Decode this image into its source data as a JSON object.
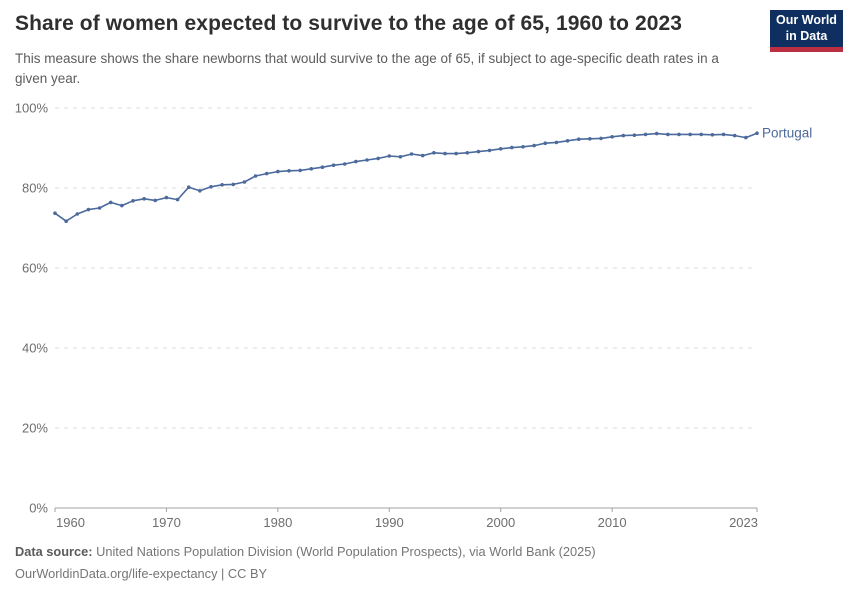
{
  "header": {
    "title": "Share of women expected to survive to the age of 65, 1960 to 2023",
    "subtitle": "This measure shows the share newborns that would survive to the age of 65, if subject to age-specific death rates in a given year.",
    "logo": {
      "line1": "Our World",
      "line2": "in Data"
    }
  },
  "theme": {
    "title-color": "#2f2f2f",
    "subtitle-color": "#5c5c5c",
    "footer-color": "#757575",
    "logo-bg": "#0e2f5f",
    "logo-bar": "#bc2e41",
    "grid-color": "#dcdcdc",
    "axis-color": "#a1a1a1",
    "tick-text-color": "#6e6e6e",
    "series-color": "#4c6a9c"
  },
  "chart_data": {
    "type": "line",
    "title": "Share of women expected to survive to the age of 65, 1960 to 2023",
    "xlabel": "",
    "ylabel": "",
    "xlim": [
      1960,
      2023
    ],
    "ylim": [
      0,
      100
    ],
    "grid": "horizontal-dashed",
    "legend_position": "end-of-line-label",
    "x_ticks": [
      1960,
      1970,
      1980,
      1990,
      2000,
      2010,
      2023
    ],
    "y_ticks": [
      {
        "value": 0,
        "label": "0%"
      },
      {
        "value": 20,
        "label": "20%"
      },
      {
        "value": 40,
        "label": "40%"
      },
      {
        "value": 60,
        "label": "60%"
      },
      {
        "value": 80,
        "label": "80%"
      },
      {
        "value": 100,
        "label": "100%"
      }
    ],
    "series": [
      {
        "name": "Portugal",
        "color": "#4c6a9c",
        "x_start": 1960,
        "x_step": 1,
        "values": [
          73.7,
          71.7,
          73.5,
          74.6,
          75.0,
          76.4,
          75.6,
          76.8,
          77.3,
          76.9,
          77.6,
          77.1,
          80.2,
          79.3,
          80.3,
          80.8,
          80.9,
          81.5,
          83.0,
          83.6,
          84.1,
          84.3,
          84.4,
          84.8,
          85.2,
          85.7,
          86.0,
          86.6,
          87.0,
          87.4,
          88.0,
          87.8,
          88.5,
          88.1,
          88.8,
          88.6,
          88.6,
          88.8,
          89.1,
          89.4,
          89.8,
          90.1,
          90.3,
          90.6,
          91.2,
          91.4,
          91.8,
          92.2,
          92.3,
          92.4,
          92.8,
          93.1,
          93.2,
          93.4,
          93.6,
          93.4,
          93.4,
          93.4,
          93.4,
          93.3,
          93.4,
          93.1,
          92.6,
          93.7
        ]
      }
    ]
  },
  "footer": {
    "source_label": "Data source:",
    "source_text": "United Nations Population Division (World Population Prospects), via World Bank (2025)",
    "note": "OurWorldinData.org/life-expectancy | CC BY"
  }
}
